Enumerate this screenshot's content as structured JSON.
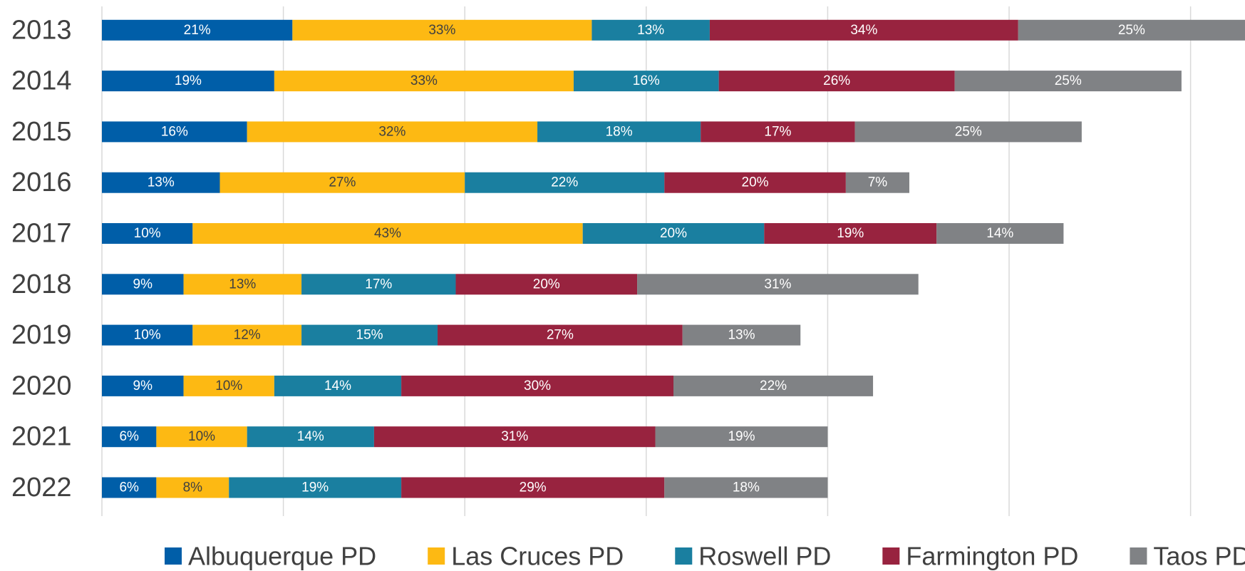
{
  "chart_data": {
    "type": "stacked_bar_horizontal",
    "categories": [
      "2013",
      "2014",
      "2015",
      "2016",
      "2017",
      "2018",
      "2019",
      "2020",
      "2021",
      "2022"
    ],
    "series": [
      {
        "name": "Albuquerque PD",
        "color": "#005ea8",
        "values": [
          21,
          19,
          16,
          13,
          10,
          9,
          10,
          9,
          6,
          6
        ],
        "value_labels": [
          "21%",
          "19%",
          "16%",
          "13%",
          "10%",
          "9%",
          "10%",
          "9%",
          "6%",
          "6%"
        ]
      },
      {
        "name": "Las Cruces PD",
        "color": "#fdb913",
        "values": [
          33,
          33,
          32,
          27,
          43,
          13,
          12,
          10,
          10,
          8
        ],
        "value_labels": [
          "33%",
          "33%",
          "32%",
          "27%",
          "43%",
          "13%",
          "12%",
          "10%",
          "10%",
          "8%"
        ]
      },
      {
        "name": "Roswell PD",
        "color": "#1a7fa0",
        "values": [
          13,
          16,
          18,
          22,
          20,
          17,
          15,
          14,
          14,
          19
        ],
        "value_labels": [
          "13%",
          "16%",
          "18%",
          "22%",
          "20%",
          "17%",
          "15%",
          "14%",
          "14%",
          "19%"
        ]
      },
      {
        "name": "Farmington PD",
        "color": "#98233f",
        "values": [
          34,
          26,
          17,
          20,
          19,
          20,
          27,
          30,
          31,
          29
        ],
        "value_labels": [
          "34%",
          "26%",
          "17%",
          "20%",
          "19%",
          "20%",
          "27%",
          "30%",
          "31%",
          "29%"
        ]
      },
      {
        "name": "Taos PD",
        "color": "#808285",
        "values": [
          25,
          25,
          25,
          7,
          14,
          31,
          13,
          22,
          19,
          18
        ],
        "value_labels": [
          "25%",
          "25%",
          "25%",
          "7%",
          "14%",
          "31%",
          "13%",
          "22%",
          "19%",
          "18%"
        ]
      }
    ],
    "xlim": [
      0,
      126
    ],
    "xticks": [
      0,
      20,
      40,
      60,
      80,
      100,
      120
    ],
    "grid": true,
    "legend": "bottom"
  }
}
